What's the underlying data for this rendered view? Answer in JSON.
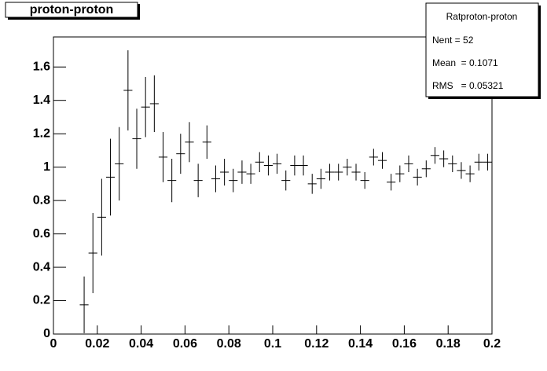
{
  "chart_data": {
    "type": "histogram",
    "title": "proton-proton",
    "stats": {
      "name": "Ratproton-proton",
      "lines": [
        "Nent = 52",
        "Mean  = 0.1071",
        "RMS   = 0.05321"
      ]
    },
    "bins": [
      0,
      0.004,
      0.008,
      0.012,
      0.016,
      0.02,
      0.024,
      0.028,
      0.032,
      0.036,
      0.04,
      0.044,
      0.048,
      0.052,
      0.056,
      0.06,
      0.064,
      0.068,
      0.072,
      0.076,
      0.08,
      0.084,
      0.088,
      0.092,
      0.096,
      0.1,
      0.104,
      0.108,
      0.112,
      0.116,
      0.12,
      0.124,
      0.128,
      0.132,
      0.136,
      0.14,
      0.144,
      0.148,
      0.152,
      0.156,
      0.16,
      0.164,
      0.168,
      0.172,
      0.176,
      0.18,
      0.184,
      0.188,
      0.192,
      0.196,
      0.2
    ],
    "values": [
      null,
      null,
      null,
      0.175,
      0.485,
      0.7,
      0.94,
      1.02,
      1.46,
      1.17,
      1.36,
      1.38,
      1.06,
      0.92,
      1.08,
      1.15,
      0.92,
      1.15,
      0.93,
      0.97,
      0.92,
      0.97,
      0.96,
      1.03,
      1.01,
      1.02,
      0.92,
      1.01,
      1.01,
      0.9,
      0.93,
      0.97,
      0.97,
      1.0,
      0.97,
      0.92,
      1.06,
      1.04,
      0.91,
      0.96,
      1.02,
      0.94,
      0.99,
      1.07,
      1.05,
      1.02,
      0.98,
      0.96,
      1.03,
      1.03
    ],
    "errors": [
      null,
      null,
      null,
      0.17,
      0.24,
      0.23,
      0.23,
      0.22,
      0.24,
      0.18,
      0.18,
      0.17,
      0.15,
      0.13,
      0.12,
      0.12,
      0.1,
      0.1,
      0.08,
      0.08,
      0.07,
      0.07,
      0.06,
      0.06,
      0.06,
      0.06,
      0.06,
      0.06,
      0.06,
      0.06,
      0.06,
      0.05,
      0.05,
      0.05,
      0.05,
      0.05,
      0.05,
      0.05,
      0.05,
      0.05,
      0.05,
      0.05,
      0.05,
      0.05,
      0.05,
      0.05,
      0.05,
      0.05,
      0.05,
      0.05
    ],
    "color": "#000000",
    "xlim": [
      0,
      0.2
    ],
    "xticks": [
      0,
      0.02,
      0.04,
      0.06,
      0.08,
      0.1,
      0.12,
      0.14,
      0.16,
      0.18,
      0.2
    ],
    "ylim": [
      0,
      1.78
    ],
    "yticks": [
      0,
      0.2,
      0.4,
      0.6,
      0.8,
      1,
      1.2,
      1.4,
      1.6
    ]
  }
}
